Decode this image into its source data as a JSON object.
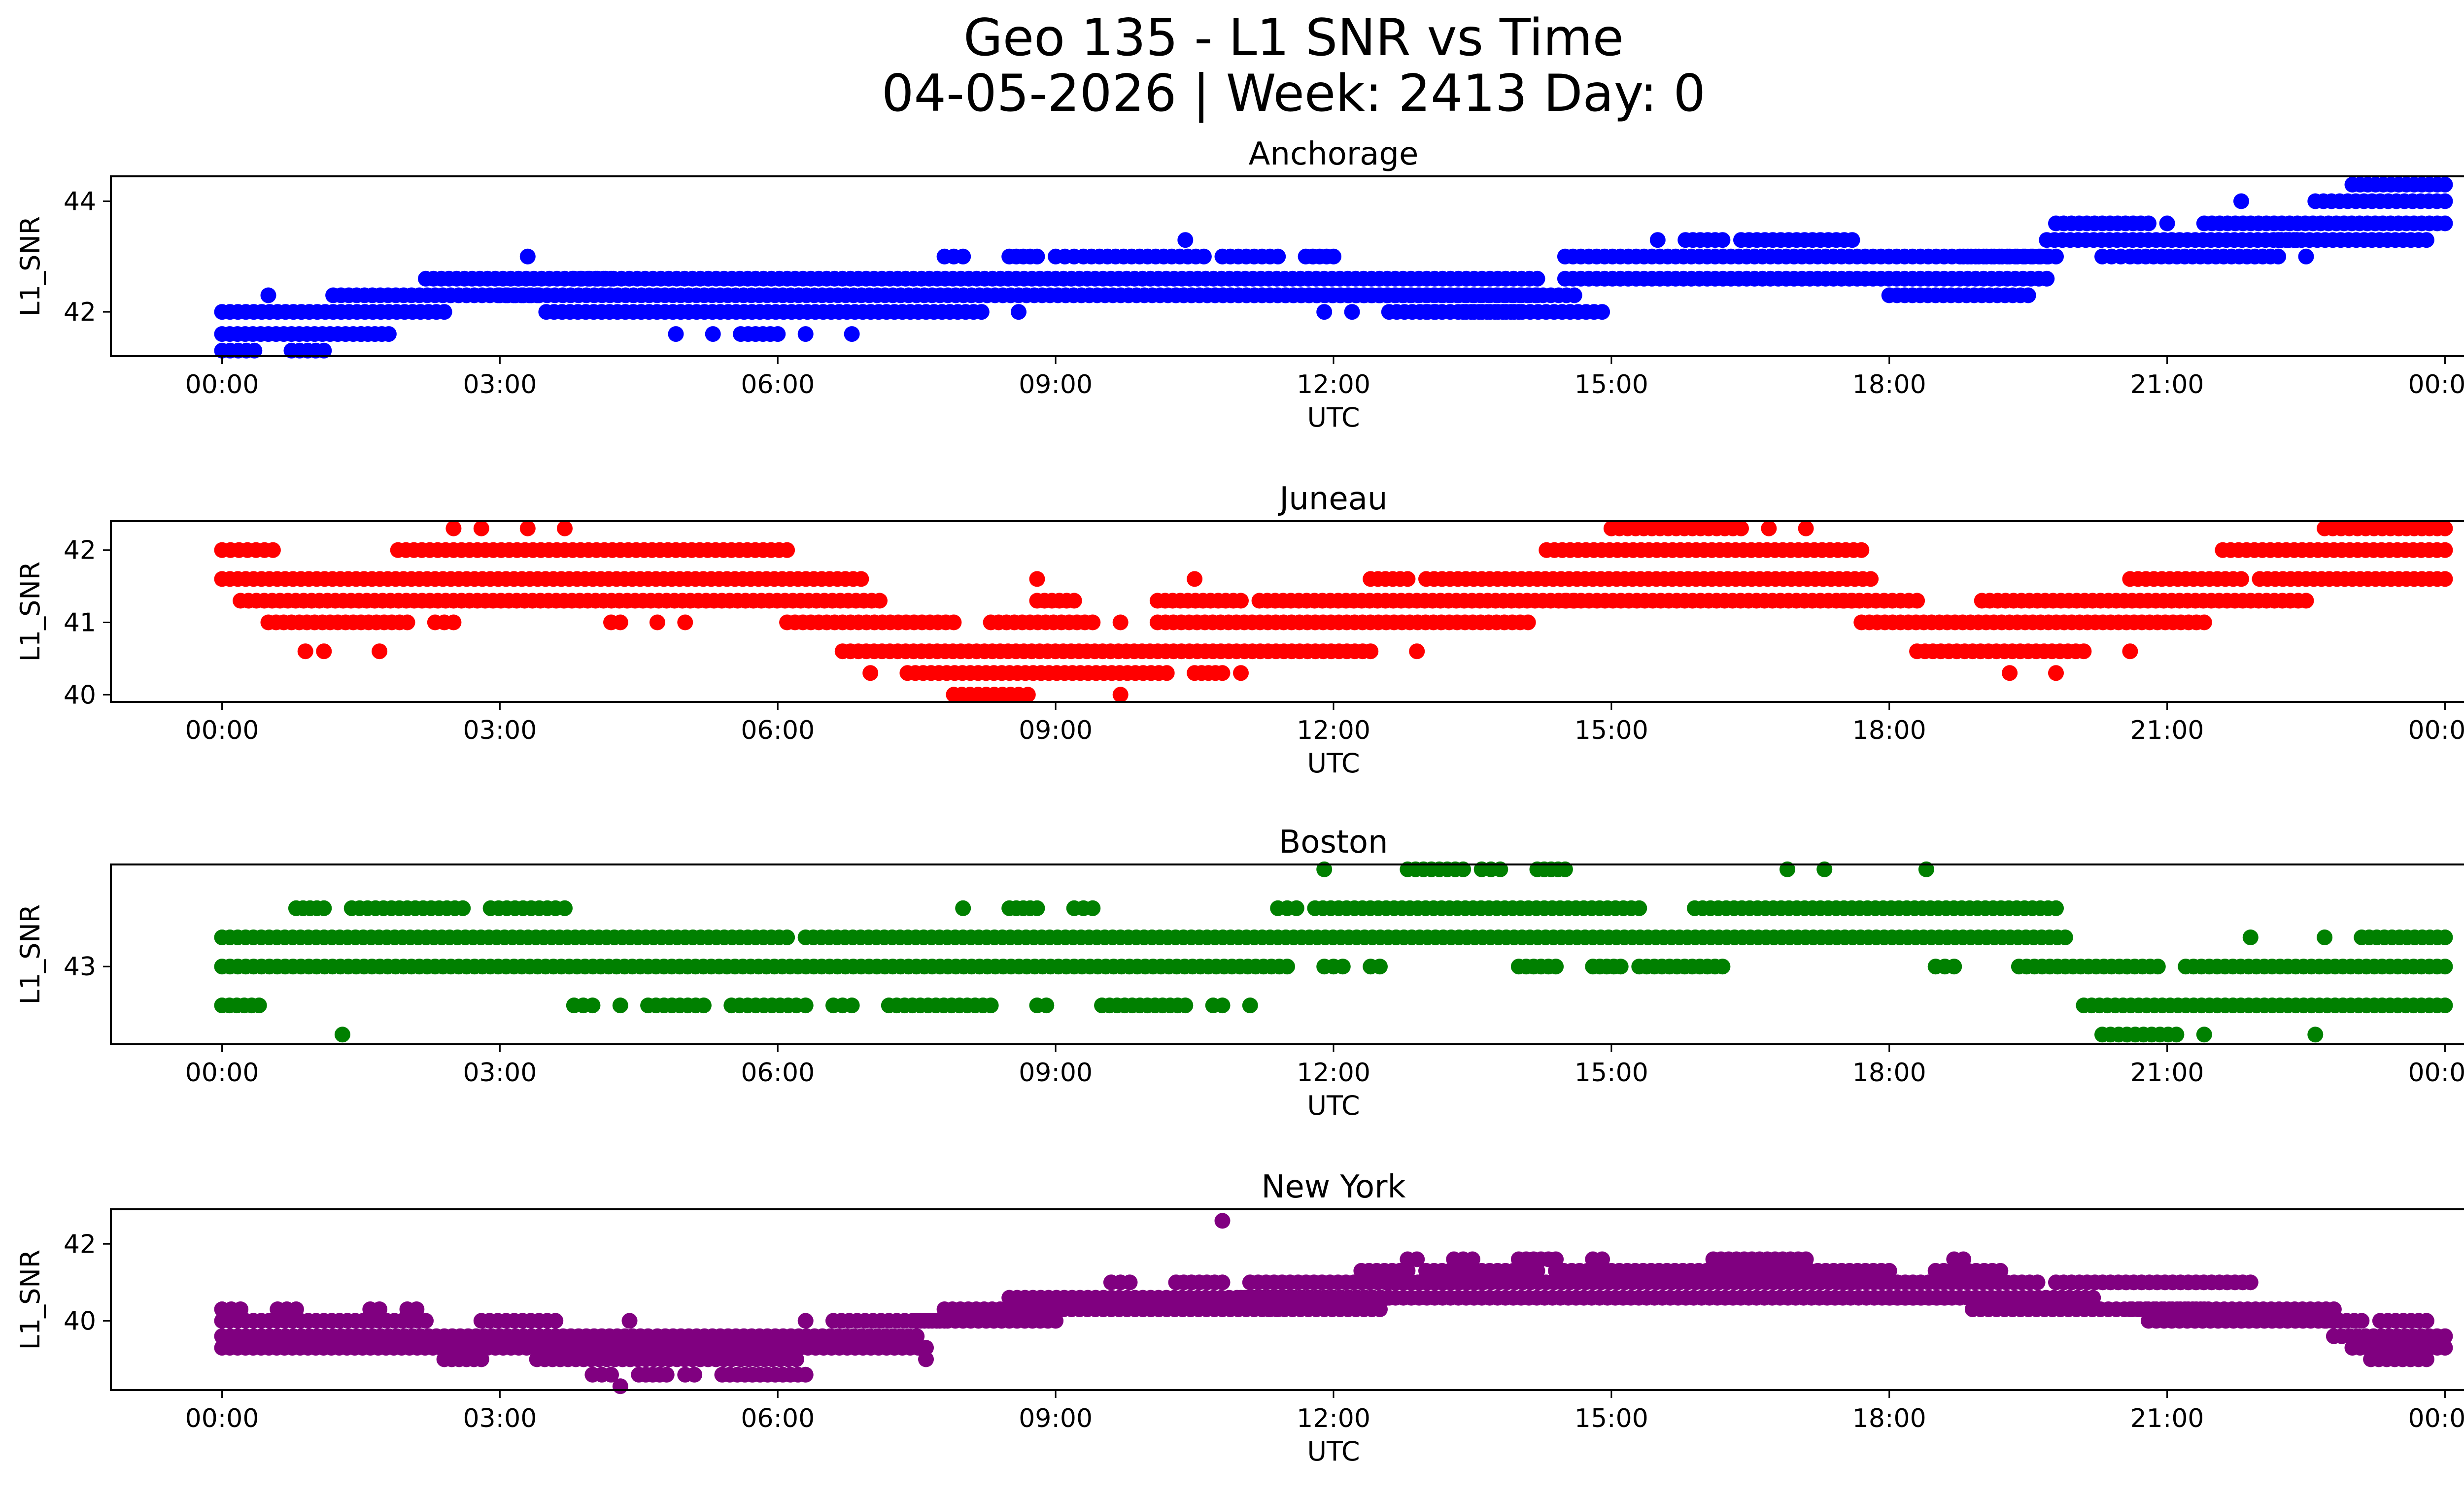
{
  "chart_data": {
    "type": "scatter",
    "suptitle_line1": "Geo 135 - L1 SNR vs Time",
    "suptitle_line2": "04-05-2026 | Week: 2413 Day: 0",
    "xticks": [
      "00:00",
      "03:00",
      "06:00",
      "09:00",
      "12:00",
      "15:00",
      "18:00",
      "21:00",
      "00:00"
    ],
    "xrange_hours": [
      -1.2,
      25.2
    ],
    "panels": [
      {
        "title": "Anchorage",
        "color": "#0000ff",
        "xlabel": "UTC",
        "ylabel": "L1_SNR",
        "ylim": [
          41.2,
          44.45
        ],
        "yticks": [
          "42",
          "44"
        ],
        "ytick_values": [
          42,
          44
        ],
        "levels": [
          41.3,
          41.6,
          42.0,
          42.3,
          42.6,
          43.0,
          43.3,
          43.6,
          44.0,
          44.3
        ],
        "segments": [
          [
            0.0,
            0.35,
            41.3
          ],
          [
            0.75,
            1.1,
            41.3
          ],
          [
            0.0,
            1.5,
            41.6
          ],
          [
            1.5,
            1.8,
            41.6
          ],
          [
            4.9,
            4.9,
            41.6
          ],
          [
            5.3,
            5.3,
            41.6
          ],
          [
            5.6,
            6.0,
            41.6
          ],
          [
            6.3,
            6.3,
            41.6
          ],
          [
            6.8,
            6.8,
            41.6
          ],
          [
            0.0,
            2.4,
            42.0
          ],
          [
            3.5,
            8.2,
            42.0
          ],
          [
            8.6,
            8.6,
            42.0
          ],
          [
            11.9,
            11.9,
            42.0
          ],
          [
            12.2,
            12.2,
            42.0
          ],
          [
            12.6,
            13.1,
            42.0
          ],
          [
            13.4,
            14.0,
            42.0
          ],
          [
            13.0,
            14.9,
            42.0
          ],
          [
            1.2,
            3.4,
            42.3
          ],
          [
            3.0,
            14.2,
            42.3
          ],
          [
            10.3,
            14.6,
            42.3
          ],
          [
            18.0,
            19.5,
            42.3
          ],
          [
            0.5,
            0.5,
            42.3
          ],
          [
            2.2,
            4.2,
            42.6
          ],
          [
            3.8,
            14.2,
            42.6
          ],
          [
            14.5,
            19.7,
            42.6
          ],
          [
            7.8,
            8.0,
            43.0
          ],
          [
            8.5,
            8.8,
            43.0
          ],
          [
            9.0,
            9.2,
            43.0
          ],
          [
            9.3,
            10.6,
            43.0
          ],
          [
            10.8,
            11.4,
            43.0
          ],
          [
            11.7,
            12.0,
            43.0
          ],
          [
            14.5,
            19.7,
            43.0
          ],
          [
            18.8,
            19.8,
            43.0
          ],
          [
            20.3,
            20.5,
            43.0
          ],
          [
            20.6,
            22.2,
            43.0
          ],
          [
            22.5,
            22.5,
            43.0
          ],
          [
            3.3,
            3.3,
            43.0
          ],
          [
            10.4,
            10.4,
            43.3
          ],
          [
            15.5,
            15.5,
            43.3
          ],
          [
            15.8,
            16.2,
            43.3
          ],
          [
            16.4,
            17.6,
            43.3
          ],
          [
            19.7,
            22.4,
            43.3
          ],
          [
            22.2,
            23.8,
            43.3
          ],
          [
            19.8,
            20.8,
            43.6
          ],
          [
            21.0,
            21.0,
            43.6
          ],
          [
            21.4,
            24.0,
            43.6
          ],
          [
            21.8,
            21.8,
            44.0
          ],
          [
            22.6,
            24.0,
            44.0
          ],
          [
            23.0,
            24.0,
            44.3
          ]
        ]
      },
      {
        "title": "Juneau",
        "color": "#ff0000",
        "xlabel": "UTC",
        "ylabel": "L1_SNR",
        "ylim": [
          39.9,
          42.4
        ],
        "yticks": [
          "40",
          "41",
          "42"
        ],
        "ytick_values": [
          40,
          41,
          42
        ],
        "levels": [
          40.0,
          40.3,
          40.6,
          41.0,
          41.3,
          41.6,
          42.0,
          42.3
        ],
        "segments": [
          [
            0.0,
            0.55,
            42.0
          ],
          [
            1.9,
            6.1,
            42.0
          ],
          [
            14.3,
            17.7,
            42.0
          ],
          [
            21.6,
            24.0,
            42.0
          ],
          [
            2.5,
            2.5,
            42.3
          ],
          [
            2.8,
            2.8,
            42.3
          ],
          [
            3.3,
            3.3,
            42.3
          ],
          [
            3.7,
            3.7,
            42.3
          ],
          [
            15.0,
            16.4,
            42.3
          ],
          [
            16.7,
            16.7,
            42.3
          ],
          [
            17.1,
            17.1,
            42.3
          ],
          [
            22.7,
            23.5,
            42.3
          ],
          [
            23.5,
            24.0,
            42.3
          ],
          [
            0.0,
            6.9,
            41.6
          ],
          [
            8.8,
            8.8,
            41.6
          ],
          [
            10.5,
            10.5,
            41.6
          ],
          [
            12.4,
            12.8,
            41.6
          ],
          [
            13.0,
            17.8,
            41.6
          ],
          [
            20.6,
            21.8,
            41.6
          ],
          [
            22.0,
            24.0,
            41.6
          ],
          [
            0.2,
            7.1,
            41.3
          ],
          [
            8.8,
            9.2,
            41.3
          ],
          [
            10.1,
            11.0,
            41.3
          ],
          [
            11.2,
            14.6,
            41.3
          ],
          [
            14.5,
            17.6,
            41.3
          ],
          [
            17.5,
            18.3,
            41.3
          ],
          [
            19.0,
            22.5,
            41.3
          ],
          [
            0.5,
            2.0,
            41.0
          ],
          [
            2.3,
            2.5,
            41.0
          ],
          [
            4.2,
            4.3,
            41.0
          ],
          [
            4.7,
            4.7,
            41.0
          ],
          [
            5.0,
            5.0,
            41.0
          ],
          [
            6.1,
            7.9,
            41.0
          ],
          [
            8.3,
            9.4,
            41.0
          ],
          [
            9.7,
            9.7,
            41.0
          ],
          [
            10.1,
            14.1,
            41.0
          ],
          [
            17.7,
            21.4,
            41.0
          ],
          [
            0.9,
            0.9,
            40.6
          ],
          [
            1.1,
            1.1,
            40.6
          ],
          [
            1.7,
            1.7,
            40.6
          ],
          [
            6.7,
            12.4,
            40.6
          ],
          [
            12.9,
            12.9,
            40.6
          ],
          [
            18.3,
            20.1,
            40.6
          ],
          [
            20.6,
            20.6,
            40.6
          ],
          [
            7.0,
            7.0,
            40.3
          ],
          [
            7.4,
            10.2,
            40.3
          ],
          [
            10.5,
            10.8,
            40.3
          ],
          [
            11.0,
            11.0,
            40.3
          ],
          [
            19.3,
            19.3,
            40.3
          ],
          [
            19.8,
            19.8,
            40.3
          ],
          [
            7.9,
            8.6,
            40.0
          ],
          [
            8.7,
            8.7,
            40.0
          ],
          [
            9.7,
            9.7,
            40.0
          ]
        ]
      },
      {
        "title": "Boston",
        "color": "#008000",
        "xlabel": "UTC",
        "ylabel": "L1_SNR",
        "ylim": [
          42.2,
          44.05
        ],
        "yticks": [
          "43"
        ],
        "ytick_values": [
          43
        ],
        "levels": [
          42.3,
          42.6,
          43.0,
          43.3,
          43.6,
          44.0
        ],
        "segments": [
          [
            0.0,
            0.4,
            42.6
          ],
          [
            3.8,
            4.0,
            42.6
          ],
          [
            4.3,
            4.3,
            42.6
          ],
          [
            4.6,
            5.2,
            42.6
          ],
          [
            5.5,
            6.2,
            42.6
          ],
          [
            6.3,
            6.3,
            42.6
          ],
          [
            6.6,
            6.8,
            42.6
          ],
          [
            7.2,
            8.3,
            42.6
          ],
          [
            8.8,
            8.9,
            42.6
          ],
          [
            9.5,
            10.4,
            42.6
          ],
          [
            10.7,
            10.8,
            42.6
          ],
          [
            11.1,
            11.1,
            42.6
          ],
          [
            20.1,
            24.0,
            42.6
          ],
          [
            1.3,
            1.3,
            42.3
          ],
          [
            20.3,
            21.1,
            42.3
          ],
          [
            21.4,
            21.4,
            42.3
          ],
          [
            22.6,
            22.6,
            42.3
          ],
          [
            0.0,
            11.5,
            43.0
          ],
          [
            11.9,
            12.1,
            43.0
          ],
          [
            12.4,
            12.5,
            43.0
          ],
          [
            14.0,
            14.4,
            43.0
          ],
          [
            14.8,
            15.1,
            43.0
          ],
          [
            15.3,
            16.2,
            43.0
          ],
          [
            18.5,
            18.7,
            43.0
          ],
          [
            19.4,
            20.9,
            43.0
          ],
          [
            21.2,
            24.0,
            43.0
          ],
          [
            0.0,
            6.1,
            43.3
          ],
          [
            6.3,
            19.9,
            43.3
          ],
          [
            21.9,
            21.9,
            43.3
          ],
          [
            22.7,
            22.7,
            43.3
          ],
          [
            23.1,
            24.0,
            43.3
          ],
          [
            0.8,
            1.1,
            43.6
          ],
          [
            1.4,
            2.6,
            43.6
          ],
          [
            2.9,
            3.6,
            43.6
          ],
          [
            3.7,
            3.7,
            43.6
          ],
          [
            8.0,
            8.0,
            43.6
          ],
          [
            8.5,
            8.8,
            43.6
          ],
          [
            9.2,
            9.4,
            43.6
          ],
          [
            11.4,
            11.6,
            43.6
          ],
          [
            11.8,
            15.3,
            43.6
          ],
          [
            15.9,
            19.8,
            43.6
          ],
          [
            11.9,
            11.9,
            44.0
          ],
          [
            12.8,
            13.4,
            44.0
          ],
          [
            13.6,
            13.8,
            44.0
          ],
          [
            14.2,
            14.5,
            44.0
          ],
          [
            16.9,
            16.9,
            44.0
          ],
          [
            17.3,
            17.3,
            44.0
          ],
          [
            18.4,
            18.4,
            44.0
          ]
        ]
      },
      {
        "title": "New York",
        "color": "#800080",
        "xlabel": "UTC",
        "ylabel": "L1_SNR",
        "ylim": [
          38.2,
          42.9
        ],
        "yticks": [
          "40",
          "42"
        ],
        "ytick_values": [
          40,
          42
        ],
        "levels": [
          38.3,
          38.6,
          39.0,
          39.3,
          39.6,
          40.0,
          40.3,
          40.6,
          41.0,
          41.3,
          41.6,
          42.6
        ],
        "segments": [
          [
            0.0,
            2.2,
            40.0
          ],
          [
            2.8,
            3.6,
            40.0
          ],
          [
            4.4,
            4.4,
            40.0
          ],
          [
            6.3,
            6.3,
            40.0
          ],
          [
            6.6,
            7.8,
            40.0
          ],
          [
            22.7,
            23.1,
            40.0
          ],
          [
            23.3,
            23.8,
            40.0
          ],
          [
            7.5,
            9.0,
            40.0
          ],
          [
            20.8,
            22.8,
            40.0
          ],
          [
            0.0,
            3.6,
            39.6
          ],
          [
            4.7,
            7.5,
            39.6
          ],
          [
            22.8,
            24.0,
            39.6
          ],
          [
            3.6,
            4.6,
            39.6
          ],
          [
            0.0,
            4.3,
            39.3
          ],
          [
            4.2,
            7.6,
            39.3
          ],
          [
            23.0,
            24.0,
            39.3
          ],
          [
            2.4,
            2.8,
            39.0
          ],
          [
            3.4,
            5.5,
            39.0
          ],
          [
            5.6,
            6.2,
            39.0
          ],
          [
            7.6,
            7.6,
            39.0
          ],
          [
            23.2,
            23.8,
            39.0
          ],
          [
            4.0,
            4.2,
            38.6
          ],
          [
            4.5,
            4.8,
            38.6
          ],
          [
            5.0,
            5.1,
            38.6
          ],
          [
            5.4,
            6.3,
            38.6
          ],
          [
            4.3,
            4.3,
            38.3
          ],
          [
            0.0,
            0.2,
            40.3
          ],
          [
            0.6,
            0.8,
            40.3
          ],
          [
            1.6,
            1.7,
            40.3
          ],
          [
            2.0,
            2.1,
            40.3
          ],
          [
            7.8,
            11.4,
            40.3
          ],
          [
            11.3,
            12.5,
            40.3
          ],
          [
            18.9,
            21.4,
            40.3
          ],
          [
            20.6,
            22.8,
            40.3
          ],
          [
            8.5,
            12.4,
            40.6
          ],
          [
            11.0,
            12.6,
            40.6
          ],
          [
            12.5,
            18.6,
            40.6
          ],
          [
            18.0,
            20.2,
            40.6
          ],
          [
            9.6,
            9.8,
            41.0
          ],
          [
            10.3,
            10.8,
            41.0
          ],
          [
            11.1,
            13.6,
            41.0
          ],
          [
            12.6,
            17.6,
            41.0
          ],
          [
            17.5,
            19.6,
            41.0
          ],
          [
            19.8,
            21.9,
            41.0
          ],
          [
            12.3,
            12.8,
            41.3
          ],
          [
            13.0,
            14.2,
            41.3
          ],
          [
            14.4,
            18.0,
            41.3
          ],
          [
            18.5,
            19.2,
            41.3
          ],
          [
            12.8,
            12.9,
            41.6
          ],
          [
            13.3,
            13.5,
            41.6
          ],
          [
            14.0,
            14.4,
            41.6
          ],
          [
            14.8,
            14.9,
            41.6
          ],
          [
            16.1,
            17.1,
            41.6
          ],
          [
            18.7,
            18.8,
            41.6
          ],
          [
            10.8,
            10.8,
            42.6
          ]
        ]
      }
    ]
  }
}
